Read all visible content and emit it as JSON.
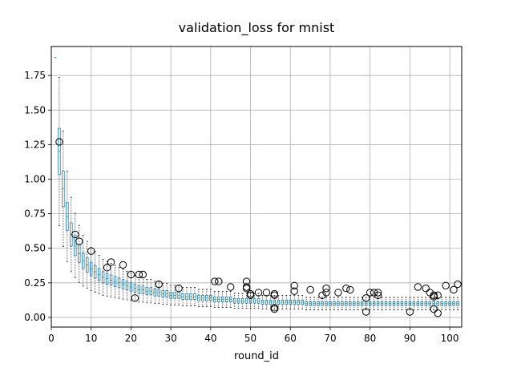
{
  "chart_data": {
    "type": "box",
    "title": "validation_loss for mnist",
    "xlabel": "round_id",
    "ylabel": "",
    "xlim": [
      0,
      103
    ],
    "ylim": [
      -0.07,
      1.96
    ],
    "xticks": [
      0,
      10,
      20,
      30,
      40,
      50,
      60,
      70,
      80,
      90,
      100
    ],
    "yticks": [
      0.0,
      0.25,
      0.5,
      0.75,
      1.0,
      1.25,
      1.5,
      1.75
    ],
    "ytick_labels": [
      "0.00",
      "0.25",
      "0.50",
      "0.75",
      "1.00",
      "1.25",
      "1.50",
      "1.75"
    ],
    "grid": true,
    "colors": {
      "box": "#1f77b4",
      "median": "#2ca02c",
      "outlier": "#000000"
    },
    "rounds": [
      1,
      2,
      3,
      4,
      5,
      6,
      7,
      8,
      9,
      10,
      11,
      12,
      13,
      14,
      15,
      16,
      17,
      18,
      19,
      20,
      21,
      22,
      23,
      24,
      25,
      26,
      27,
      28,
      29,
      30,
      31,
      32,
      33,
      34,
      35,
      36,
      37,
      38,
      39,
      40,
      41,
      42,
      43,
      44,
      45,
      46,
      47,
      48,
      49,
      50,
      51,
      52,
      53,
      54,
      55,
      56,
      57,
      58,
      59,
      60,
      61,
      62,
      63,
      64,
      65,
      66,
      67,
      68,
      69,
      70,
      71,
      72,
      73,
      74,
      75,
      76,
      77,
      78,
      79,
      80,
      81,
      82,
      83,
      84,
      85,
      86,
      87,
      88,
      89,
      90,
      91,
      92,
      93,
      94,
      95,
      96,
      97,
      98,
      99,
      100,
      101,
      102
    ],
    "medians": [
      1.88,
      1.2,
      0.93,
      0.73,
      0.6,
      0.52,
      0.46,
      0.41,
      0.38,
      0.35,
      0.33,
      0.31,
      0.29,
      0.28,
      0.27,
      0.26,
      0.25,
      0.24,
      0.23,
      0.22,
      0.21,
      0.2,
      0.2,
      0.19,
      0.19,
      0.18,
      0.18,
      0.17,
      0.17,
      0.16,
      0.16,
      0.16,
      0.15,
      0.15,
      0.15,
      0.15,
      0.14,
      0.14,
      0.14,
      0.14,
      0.13,
      0.13,
      0.13,
      0.13,
      0.13,
      0.12,
      0.12,
      0.12,
      0.12,
      0.12,
      0.12,
      0.12,
      0.11,
      0.11,
      0.11,
      0.11,
      0.11,
      0.11,
      0.11,
      0.11,
      0.11,
      0.11,
      0.11,
      0.1,
      0.1,
      0.1,
      0.1,
      0.1,
      0.1,
      0.1,
      0.1,
      0.1,
      0.1,
      0.1,
      0.1,
      0.1,
      0.1,
      0.1,
      0.1,
      0.1,
      0.1,
      0.1,
      0.1,
      0.1,
      0.1,
      0.1,
      0.1,
      0.1,
      0.1,
      0.1,
      0.1,
      0.1,
      0.1,
      0.1,
      0.1,
      0.1,
      0.1,
      0.1,
      0.1,
      0.1,
      0.1,
      0.1
    ],
    "outliers": [
      [
        2,
        1.27
      ],
      [
        6,
        0.6
      ],
      [
        7,
        0.55
      ],
      [
        10,
        0.48
      ],
      [
        14,
        0.36
      ],
      [
        15,
        0.4
      ],
      [
        18,
        0.38
      ],
      [
        20,
        0.31
      ],
      [
        21,
        0.14
      ],
      [
        22,
        0.31
      ],
      [
        23,
        0.31
      ],
      [
        27,
        0.24
      ],
      [
        32,
        0.21
      ],
      [
        41,
        0.26
      ],
      [
        42,
        0.26
      ],
      [
        45,
        0.22
      ],
      [
        49,
        0.26
      ],
      [
        49,
        0.22
      ],
      [
        49,
        0.21
      ],
      [
        50,
        0.16
      ],
      [
        50,
        0.17
      ],
      [
        52,
        0.18
      ],
      [
        54,
        0.18
      ],
      [
        56,
        0.17
      ],
      [
        56,
        0.16
      ],
      [
        56,
        0.07
      ],
      [
        56,
        0.06
      ],
      [
        61,
        0.23
      ],
      [
        61,
        0.19
      ],
      [
        65,
        0.2
      ],
      [
        68,
        0.16
      ],
      [
        69,
        0.21
      ],
      [
        69,
        0.18
      ],
      [
        72,
        0.18
      ],
      [
        74,
        0.21
      ],
      [
        75,
        0.2
      ],
      [
        79,
        0.14
      ],
      [
        79,
        0.04
      ],
      [
        80,
        0.18
      ],
      [
        81,
        0.18
      ],
      [
        82,
        0.18
      ],
      [
        82,
        0.16
      ],
      [
        90,
        0.04
      ],
      [
        92,
        0.22
      ],
      [
        94,
        0.21
      ],
      [
        95,
        0.18
      ],
      [
        96,
        0.16
      ],
      [
        96,
        0.06
      ],
      [
        96,
        0.15
      ],
      [
        97,
        0.16
      ],
      [
        97,
        0.03
      ],
      [
        99,
        0.23
      ],
      [
        101,
        0.2
      ],
      [
        102,
        0.24
      ]
    ]
  }
}
